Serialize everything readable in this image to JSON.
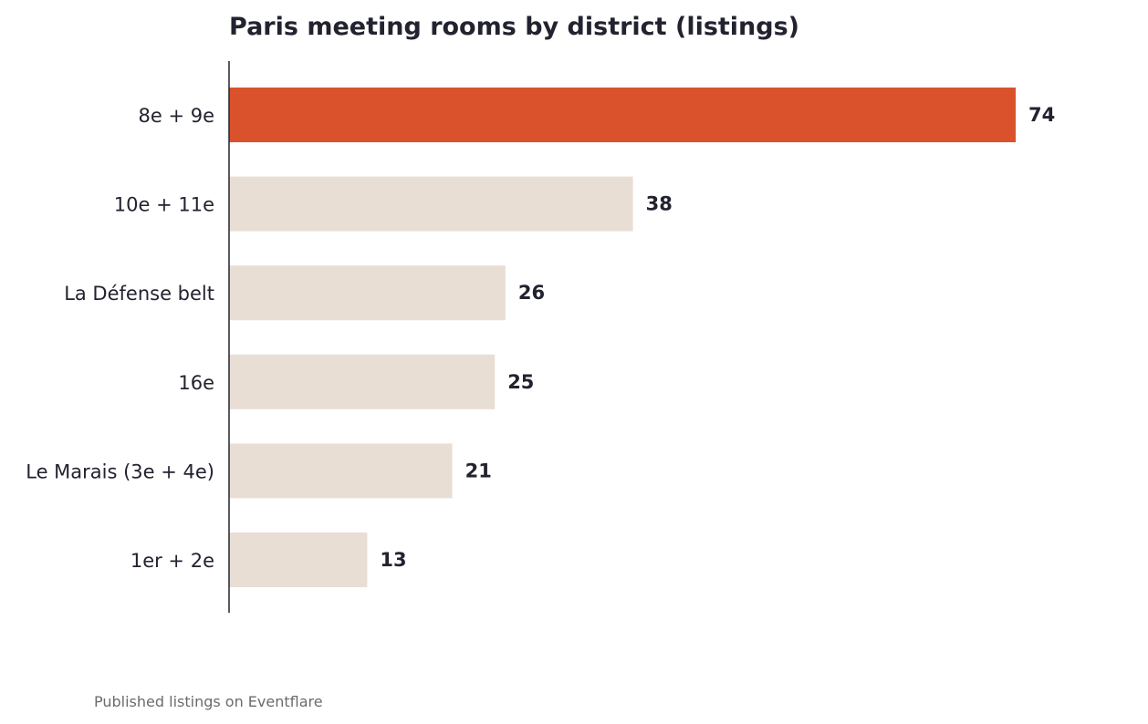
{
  "chart_data": {
    "type": "bar",
    "orientation": "horizontal",
    "title": "Paris meeting rooms by district (listings)",
    "categories": [
      "8e + 9e",
      "10e + 11e",
      "La Défense belt",
      "16e",
      "Le Marais (3e + 4e)",
      "1er + 2e"
    ],
    "values": [
      74,
      38,
      26,
      25,
      21,
      13
    ],
    "highlight_index": 0,
    "xlim": [
      0,
      80
    ],
    "xlabel": "",
    "ylabel": "",
    "grid": false,
    "legend": "none"
  },
  "footnote": "Published listings on Eventflare",
  "colors": {
    "highlight": "#d9522c",
    "bar": "#e8ded4",
    "text": "#22232f",
    "axis": "#22232f",
    "footnote": "#6b6b6b"
  }
}
